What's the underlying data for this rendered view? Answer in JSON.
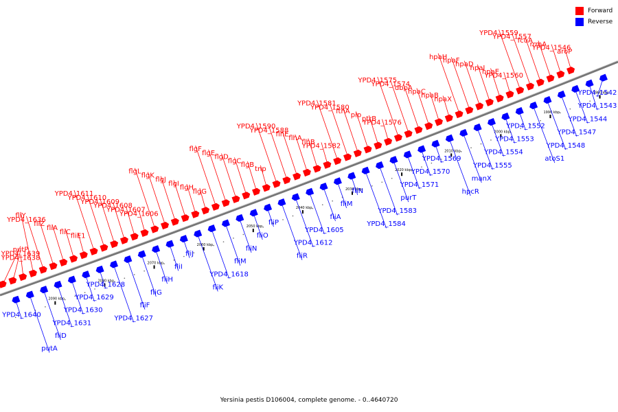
{
  "caption": "Yersinia pestis D106004, complete genome. - 0..4640720",
  "legend": [
    {
      "label": "Forward",
      "color": "#ff0000"
    },
    {
      "label": "Reverse",
      "color": "#0000ff"
    }
  ],
  "colors": {
    "forward": "#ff0000",
    "reverse": "#0000ff",
    "backbone": "#777777"
  },
  "ticks": [
    "1980 kbp",
    "1990 kbp",
    "2000 kbp",
    "2010 kbp",
    "2020 kbp",
    "2030 kbp",
    "2040 kbp",
    "2050 kbp",
    "2060 kbp",
    "2070 kbp",
    "2080 kbp",
    "2090 kbp"
  ],
  "reverse_genes": [
    "YPD4_1542",
    "YPD4_1543",
    "YPD4_1544",
    "YPD4_1547",
    "YPD4_1548",
    "atoS1",
    "YPD4_1552",
    "YPD4_1553",
    "YPD4_1554",
    "YPD4_1555",
    "manX",
    "hpcR",
    "YPD4_1569",
    "YPD4_1570",
    "YPD4_1571",
    "purT",
    "YPD4_1583",
    "YPD4_1584",
    "fliN",
    "fliM",
    "fliA",
    "YPD4_1605",
    "YPD4_1612",
    "fliR",
    "fliP",
    "fliO",
    "fliN",
    "fliM",
    "YPD4_1618",
    "fliK",
    "fliJ",
    "fliI",
    "fliH",
    "fliG",
    "fliF",
    "YPD4_1627",
    "YPD4_1628",
    "YPD4_1629",
    "YPD4_1630",
    "YPD4_1631",
    "fliD",
    "putA",
    "YPD4_1640"
  ],
  "forward_genes": [
    "aroP",
    "YPD4_1546",
    "rrmA",
    "fcuA",
    "YPD4_1557",
    "YPD4_1559",
    "YPD4_1560",
    "hpaE",
    "hpaI",
    "hpaD",
    "hpaF",
    "hpaH",
    "hpaX",
    "hpaB",
    "hpaC",
    "dbpA",
    "YPD4_1574",
    "YPD4_1575",
    "YPD4_1576",
    "ptrB",
    "pip",
    "ftnA",
    "YPD4_1580",
    "YPD4_1581",
    "YPD4_1582",
    "flhB",
    "flhA",
    "flhE",
    "YPD4_1588",
    "YPD4_1590",
    "tnp",
    "flgB",
    "flgC",
    "flgD",
    "flgE",
    "flgF",
    "flgG",
    "flgH",
    "flgI",
    "flgJ",
    "flgK",
    "flgL",
    "YPD4_1606",
    "YPD4_1607",
    "YPD4_1608",
    "YPD4_1609",
    "YPD4_1610",
    "YPD4_1611",
    "fliE1",
    "fliC",
    "fliA",
    "fliZ",
    "YPD4_1636",
    "fliY",
    "YPD4_1638",
    "YPD4_1639",
    "putP"
  ]
}
